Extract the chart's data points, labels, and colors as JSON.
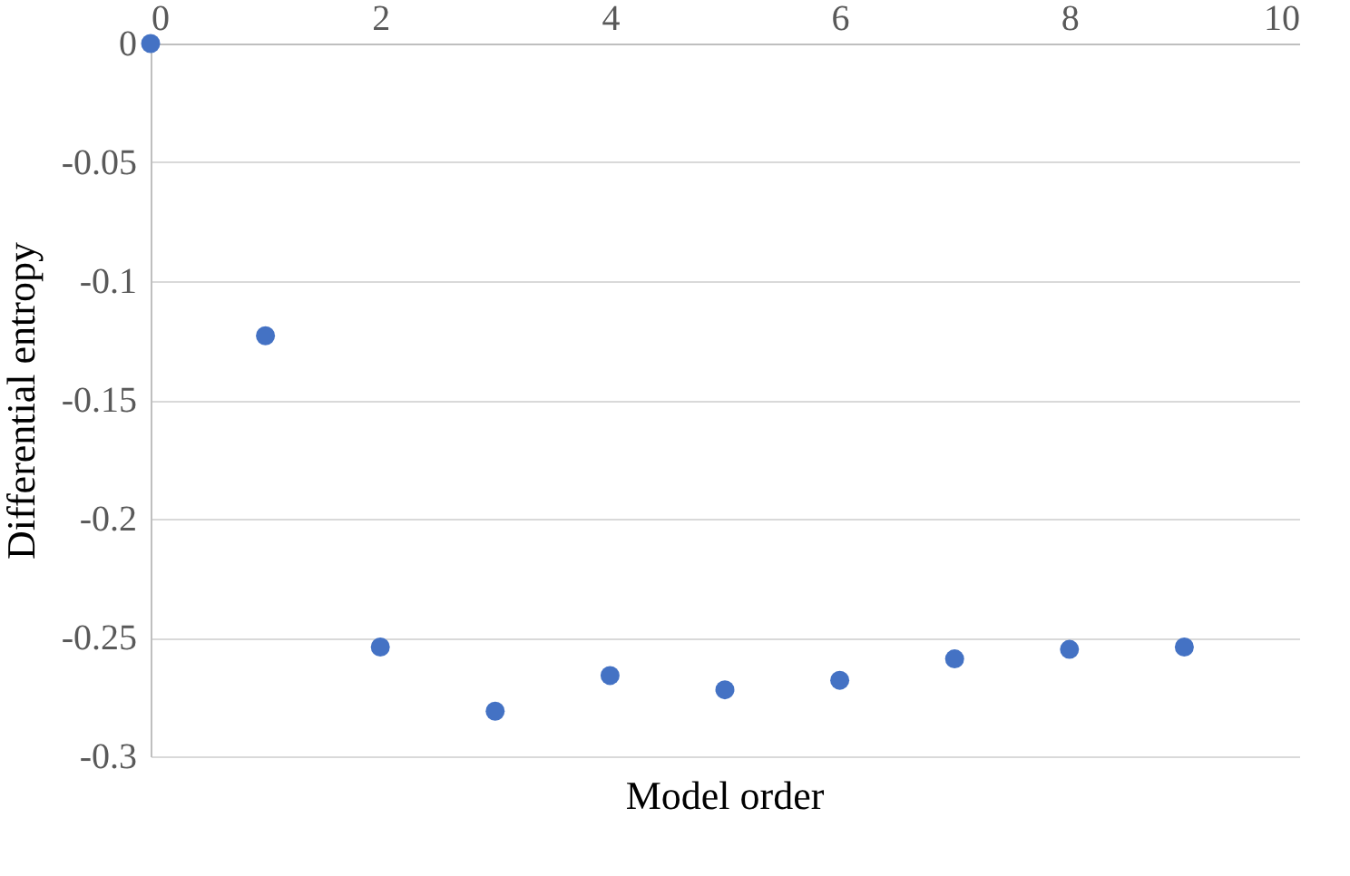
{
  "chart_data": {
    "type": "scatter",
    "xlabel": "Model order",
    "ylabel": "Differential entropy",
    "x": [
      0,
      1,
      2,
      3,
      4,
      5,
      6,
      7,
      8,
      9
    ],
    "series": [
      {
        "color": "#4472c4",
        "values": [
          0,
          -0.123,
          -0.254,
          -0.281,
          -0.266,
          -0.272,
          -0.268,
          -0.259,
          -0.255,
          -0.254
        ]
      }
    ],
    "xlim": [
      0,
      10
    ],
    "xticks": [
      0,
      2,
      4,
      6,
      8,
      10
    ],
    "ylim": [
      -0.3,
      0
    ],
    "yticks": [
      0,
      -0.05,
      -0.1,
      -0.15,
      -0.2,
      -0.25,
      -0.3
    ],
    "grid": "y",
    "marker": "circle",
    "legend": false
  }
}
